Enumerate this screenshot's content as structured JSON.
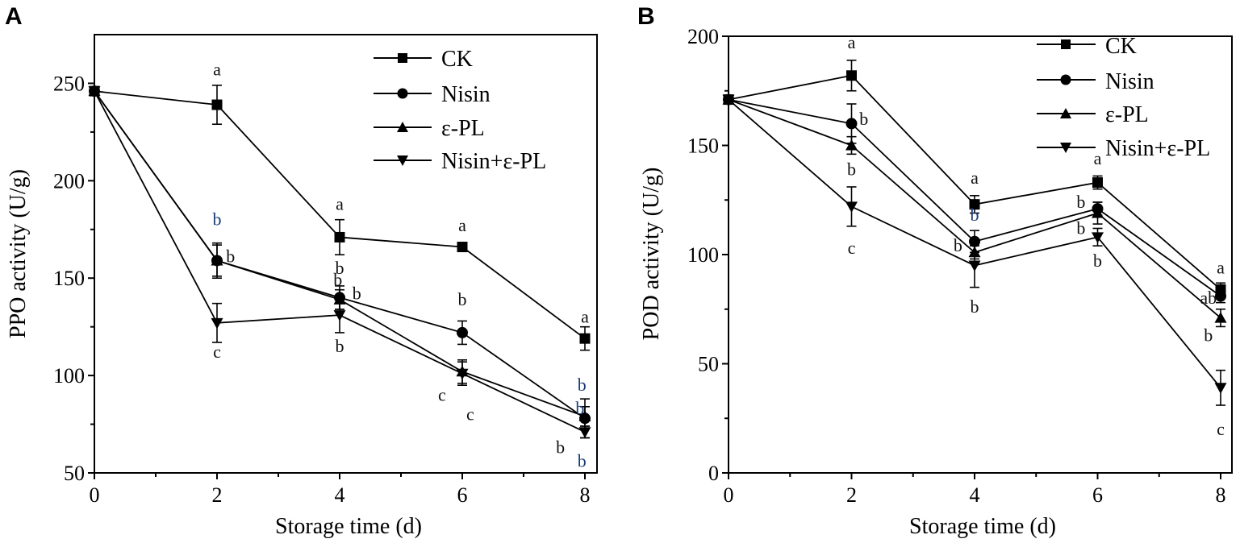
{
  "chart_data": [
    {
      "type": "line",
      "panel": "A",
      "xlabel": "Storage time (d)",
      "ylabel": "PPO activity (U/g)",
      "xlim": [
        0,
        8.1
      ],
      "ylim": [
        50,
        275
      ],
      "xticks": [
        0,
        2,
        4,
        6,
        8
      ],
      "yticks": [
        50,
        100,
        150,
        200,
        250
      ],
      "x": [
        0,
        2,
        4,
        6,
        8
      ],
      "series": [
        {
          "name": "CK",
          "marker": "square",
          "values": [
            246,
            239,
            171,
            166,
            119
          ],
          "errors": [
            0,
            10,
            9,
            1,
            6
          ]
        },
        {
          "name": "Nisin",
          "marker": "circle",
          "values": [
            246,
            159,
            140,
            122,
            78
          ],
          "errors": [
            0,
            9,
            6,
            6,
            10
          ]
        },
        {
          "name": "ε-PL",
          "marker": "triangle-up",
          "values": [
            246,
            159,
            139,
            102,
            79
          ],
          "errors": [
            0,
            8,
            5,
            6,
            5
          ]
        },
        {
          "name": "Nisin+ε-PL",
          "marker": "triangle-down",
          "values": [
            246,
            127,
            131,
            101,
            71
          ],
          "errors": [
            0,
            10,
            9,
            6,
            3
          ]
        }
      ],
      "annotations": [
        {
          "x": 2,
          "y": 257,
          "text": "a",
          "color": "#111111"
        },
        {
          "x": 2,
          "y": 180,
          "text": "b",
          "color": "#1a3c78"
        },
        {
          "x": 2.22,
          "y": 161,
          "text": "b",
          "color": "#111111"
        },
        {
          "x": 2,
          "y": 112,
          "text": "c",
          "color": "#111111"
        },
        {
          "x": 4,
          "y": 188,
          "text": "a",
          "color": "#111111"
        },
        {
          "x": 4,
          "y": 155,
          "text": "b",
          "color": "#111111"
        },
        {
          "x": 3.97,
          "y": 149,
          "text": "b",
          "color": "#111111"
        },
        {
          "x": 4.28,
          "y": 142,
          "text": "b",
          "color": "#111111"
        },
        {
          "x": 4,
          "y": 115,
          "text": "b",
          "color": "#111111"
        },
        {
          "x": 6,
          "y": 177,
          "text": "a",
          "color": "#111111"
        },
        {
          "x": 6,
          "y": 139,
          "text": "b",
          "color": "#111111"
        },
        {
          "x": 5.67,
          "y": 90,
          "text": "c",
          "color": "#111111"
        },
        {
          "x": 6.13,
          "y": 80,
          "text": "c",
          "color": "#111111"
        },
        {
          "x": 8,
          "y": 130,
          "text": "a",
          "color": "#111111"
        },
        {
          "x": 7.95,
          "y": 95,
          "text": "b",
          "color": "#1a3c78"
        },
        {
          "x": 7.92,
          "y": 83,
          "text": "b",
          "color": "#1a3c78"
        },
        {
          "x": 7.6,
          "y": 63,
          "text": "b",
          "color": "#111111"
        },
        {
          "x": 7.95,
          "y": 56,
          "text": "b",
          "color": "#1a3c78"
        }
      ]
    },
    {
      "type": "line",
      "panel": "B",
      "xlabel": "Storage time (d)",
      "ylabel": "POD activity (U/g)",
      "xlim": [
        0,
        8.1
      ],
      "ylim": [
        0,
        200
      ],
      "xticks": [
        0,
        2,
        4,
        6,
        8
      ],
      "yticks": [
        0,
        50,
        100,
        150,
        200
      ],
      "x": [
        0,
        2,
        4,
        6,
        8
      ],
      "series": [
        {
          "name": "CK",
          "marker": "square",
          "values": [
            171,
            182,
            123,
            133,
            84
          ],
          "errors": [
            0,
            7,
            4,
            3,
            3
          ]
        },
        {
          "name": "Nisin",
          "marker": "circle",
          "values": [
            171,
            160,
            106,
            121,
            81
          ],
          "errors": [
            0,
            9,
            5,
            3,
            3
          ]
        },
        {
          "name": "ε-PL",
          "marker": "triangle-up",
          "values": [
            171,
            150,
            101,
            119,
            71
          ],
          "errors": [
            0,
            4,
            3,
            5,
            4
          ]
        },
        {
          "name": "Nisin+ε-PL",
          "marker": "triangle-down",
          "values": [
            171,
            122,
            95,
            108,
            39
          ],
          "errors": [
            0,
            9,
            10,
            4,
            8
          ]
        }
      ],
      "annotations": [
        {
          "x": 2,
          "y": 197,
          "text": "a",
          "color": "#111111"
        },
        {
          "x": 2.2,
          "y": 162,
          "text": "b",
          "color": "#111111"
        },
        {
          "x": 2,
          "y": 139,
          "text": "b",
          "color": "#111111"
        },
        {
          "x": 2,
          "y": 103,
          "text": "c",
          "color": "#111111"
        },
        {
          "x": 4,
          "y": 135,
          "text": "a",
          "color": "#111111"
        },
        {
          "x": 4,
          "y": 118,
          "text": "b",
          "color": "#1a3c78"
        },
        {
          "x": 3.73,
          "y": 104,
          "text": "b",
          "color": "#111111"
        },
        {
          "x": 4,
          "y": 76,
          "text": "b",
          "color": "#111111"
        },
        {
          "x": 6,
          "y": 144,
          "text": "a",
          "color": "#111111"
        },
        {
          "x": 5.73,
          "y": 124,
          "text": "b",
          "color": "#111111"
        },
        {
          "x": 5.73,
          "y": 112,
          "text": "b",
          "color": "#111111"
        },
        {
          "x": 6,
          "y": 97,
          "text": "b",
          "color": "#111111"
        },
        {
          "x": 8,
          "y": 94,
          "text": "a",
          "color": "#111111"
        },
        {
          "x": 7.8,
          "y": 80,
          "text": "ab",
          "color": "#111111"
        },
        {
          "x": 7.8,
          "y": 63,
          "text": "b",
          "color": "#111111"
        },
        {
          "x": 8,
          "y": 20,
          "text": "c",
          "color": "#111111"
        }
      ]
    }
  ]
}
